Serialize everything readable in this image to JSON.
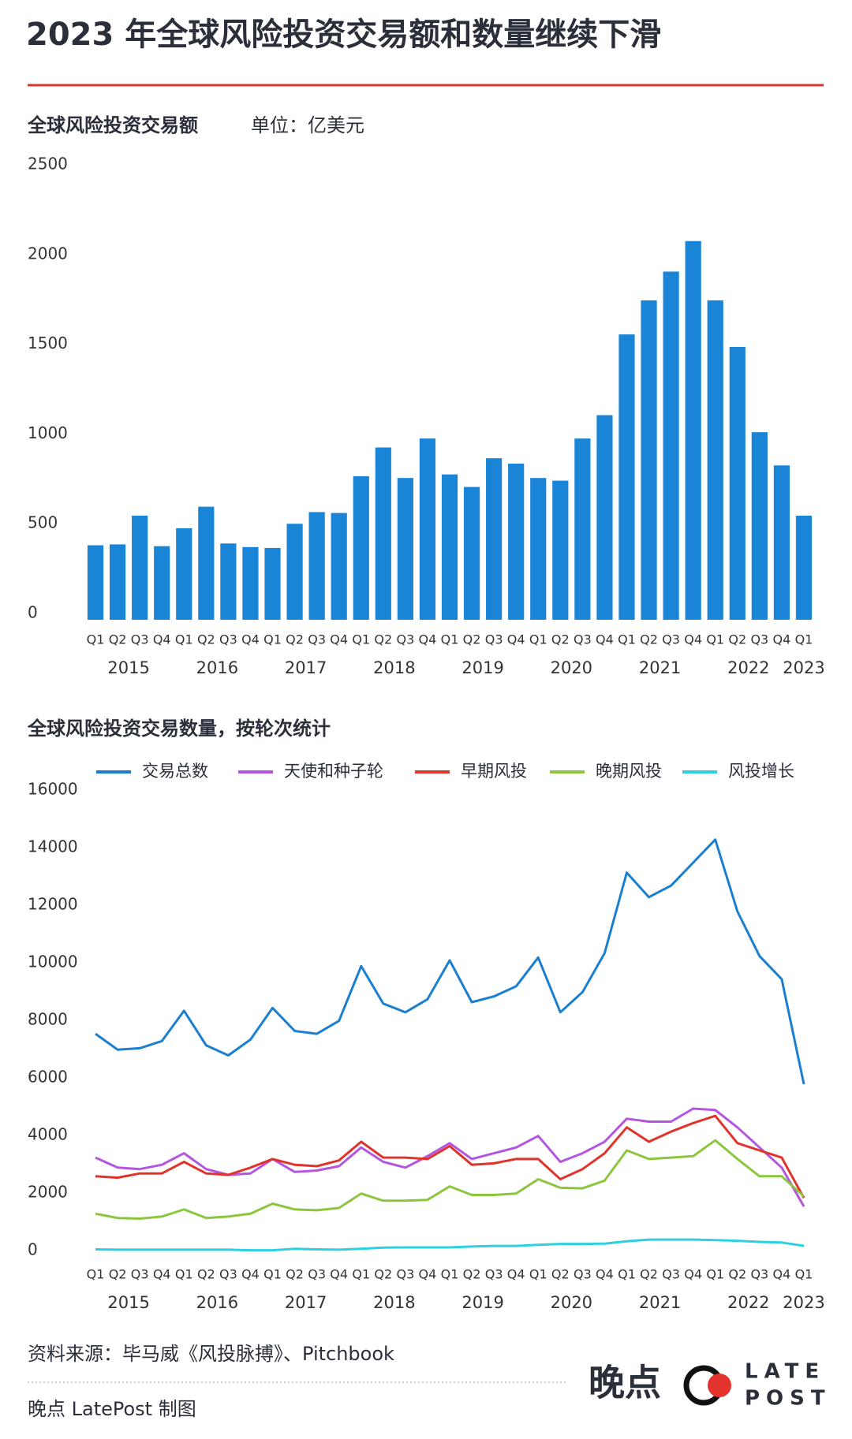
{
  "header": {
    "title": "2023 年全球风险投资交易额和数量继续下滑"
  },
  "chart_data": [
    {
      "type": "bar",
      "title": "全球风险投资交易额",
      "unit": "单位：亿美元",
      "color": "#1a85d6",
      "categories": [
        "Q1",
        "Q2",
        "Q3",
        "Q4",
        "Q1",
        "Q2",
        "Q3",
        "Q4",
        "Q1",
        "Q2",
        "Q3",
        "Q4",
        "Q1",
        "Q2",
        "Q3",
        "Q4",
        "Q1",
        "Q2",
        "Q3",
        "Q4",
        "Q1",
        "Q2",
        "Q3",
        "Q4",
        "Q1",
        "Q2",
        "Q3",
        "Q4",
        "Q1",
        "Q2",
        "Q3",
        "Q4",
        "Q1"
      ],
      "x_groups": [
        "2015",
        "2016",
        "2017",
        "2018",
        "2019",
        "2020",
        "2021",
        "2022",
        "2023"
      ],
      "values": [
        415,
        420,
        580,
        410,
        510,
        630,
        425,
        405,
        400,
        535,
        600,
        595,
        800,
        960,
        790,
        1010,
        810,
        740,
        900,
        870,
        790,
        775,
        1010,
        1140,
        1590,
        1780,
        1940,
        2110,
        1780,
        1520,
        1045,
        860,
        580
      ],
      "ylim": [
        0,
        2500
      ],
      "yticks": [
        0,
        500,
        1000,
        1500,
        2000,
        2500
      ]
    },
    {
      "type": "line",
      "title": "全球风险投资交易数量，按轮次统计",
      "categories": [
        "Q1",
        "Q2",
        "Q3",
        "Q4",
        "Q1",
        "Q2",
        "Q3",
        "Q4",
        "Q1",
        "Q2",
        "Q3",
        "Q4",
        "Q1",
        "Q2",
        "Q3",
        "Q4",
        "Q1",
        "Q2",
        "Q3",
        "Q4",
        "Q1",
        "Q2",
        "Q3",
        "Q4",
        "Q1",
        "Q2",
        "Q3",
        "Q4",
        "Q1",
        "Q2",
        "Q3",
        "Q4",
        "Q1"
      ],
      "x_groups": [
        "2015",
        "2016",
        "2017",
        "2018",
        "2019",
        "2020",
        "2021",
        "2022",
        "2023"
      ],
      "ylim": [
        0,
        16000
      ],
      "yticks": [
        0,
        2000,
        4000,
        6000,
        8000,
        10000,
        12000,
        14000,
        16000
      ],
      "series": [
        {
          "name": "交易总数",
          "color": "#1a7fd0",
          "values": [
            7750,
            7200,
            7250,
            7500,
            8550,
            7350,
            7000,
            7550,
            8650,
            7850,
            7750,
            8200,
            10100,
            8800,
            8500,
            8950,
            10300,
            8850,
            9050,
            9400,
            10400,
            8500,
            9200,
            10550,
            13350,
            12500,
            12900,
            13700,
            14500,
            12000,
            10450,
            9650,
            6000
          ]
        },
        {
          "name": "天使和种子轮",
          "color": "#b455e0",
          "values": [
            3450,
            3100,
            3050,
            3200,
            3600,
            3050,
            2850,
            2900,
            3400,
            2950,
            3000,
            3150,
            3800,
            3300,
            3100,
            3500,
            3950,
            3400,
            3600,
            3800,
            4200,
            3300,
            3600,
            4000,
            4800,
            4700,
            4700,
            5150,
            5100,
            4500,
            3800,
            3100,
            1750
          ]
        },
        {
          "name": "早期风投",
          "color": "#e0332b",
          "values": [
            2800,
            2750,
            2900,
            2900,
            3300,
            2900,
            2850,
            3100,
            3400,
            3200,
            3150,
            3350,
            4000,
            3450,
            3450,
            3400,
            3850,
            3200,
            3250,
            3400,
            3400,
            2700,
            3050,
            3600,
            4500,
            4000,
            4350,
            4650,
            4900,
            3950,
            3700,
            3450,
            2050
          ]
        },
        {
          "name": "晚期风投",
          "color": "#8cc63f",
          "values": [
            1500,
            1350,
            1330,
            1400,
            1650,
            1350,
            1400,
            1500,
            1850,
            1650,
            1620,
            1700,
            2200,
            1950,
            1950,
            1980,
            2450,
            2150,
            2150,
            2200,
            2700,
            2400,
            2380,
            2650,
            3700,
            3400,
            3450,
            3500,
            4050,
            3400,
            2800,
            2800,
            2100
          ]
        },
        {
          "name": "风投增长",
          "color": "#2dcfe0",
          "values": [
            260,
            250,
            250,
            250,
            250,
            250,
            250,
            230,
            230,
            280,
            260,
            250,
            280,
            320,
            330,
            330,
            330,
            360,
            380,
            380,
            420,
            450,
            450,
            460,
            540,
            600,
            600,
            600,
            580,
            560,
            520,
            500,
            380
          ]
        }
      ]
    }
  ],
  "footer": {
    "source": "资料来源：毕马威《风投脉搏》、Pitchbook",
    "credit": "晚点 LatePost 制图",
    "logo": {
      "brand": "晚点",
      "line1": "LATE",
      "line2": "POST"
    }
  }
}
